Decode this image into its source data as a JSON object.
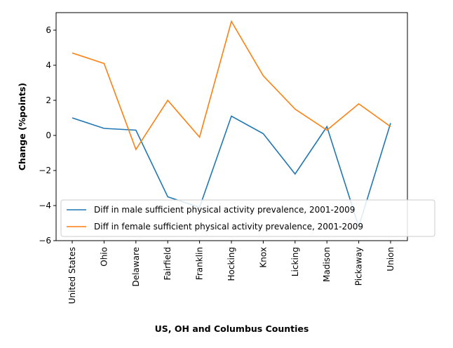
{
  "chart_data": {
    "type": "line",
    "categories": [
      "United States",
      "Ohio",
      "Delaware",
      "Fairfield",
      "Franklin",
      "Hocking",
      "Knox",
      "Licking",
      "Madison",
      "Pickaway",
      "Union"
    ],
    "series": [
      {
        "name": "Diff in male sufficient physical activity prevalence, 2001-2009",
        "color": "#1f77b4",
        "values": [
          1.0,
          0.4,
          0.3,
          -3.5,
          -4.1,
          1.1,
          0.1,
          -2.2,
          0.5,
          -5.2,
          0.7
        ]
      },
      {
        "name": "Diff in female sufficient physical activity prevalence, 2001-2009",
        "color": "#ff7f0e",
        "values": [
          4.7,
          4.1,
          -0.8,
          2.0,
          -0.1,
          6.5,
          3.4,
          1.5,
          0.3,
          1.8,
          0.5
        ]
      }
    ],
    "xlabel": "US, OH and Columbus Counties",
    "ylabel": "Change (%points)",
    "ylim": [
      -6,
      7
    ],
    "yticks": [
      -6,
      -4,
      -2,
      0,
      2,
      4,
      6
    ],
    "ytick_labels": [
      "−6",
      "−4",
      "−2",
      "0",
      "2",
      "4",
      "6"
    ],
    "grid": false,
    "legend_position": "lower-left"
  }
}
